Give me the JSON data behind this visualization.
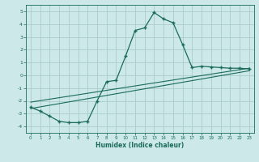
{
  "xlabel": "Humidex (Indice chaleur)",
  "ylabel": "",
  "bg_color": "#cce8e8",
  "grid_color": "#aacccc",
  "line_color": "#1a6b5a",
  "xlim": [
    -0.5,
    23.5
  ],
  "ylim": [
    -4.5,
    5.5
  ],
  "xticks": [
    0,
    1,
    2,
    3,
    4,
    5,
    6,
    7,
    8,
    9,
    10,
    11,
    12,
    13,
    14,
    15,
    16,
    17,
    18,
    19,
    20,
    21,
    22,
    23
  ],
  "yticks": [
    -4,
    -3,
    -2,
    -1,
    0,
    1,
    2,
    3,
    4,
    5
  ],
  "line1_x": [
    0,
    1,
    2,
    3,
    4,
    5,
    6,
    7,
    8,
    9,
    10,
    11,
    12,
    13,
    14,
    15,
    16,
    17,
    18,
    19,
    20,
    21,
    22,
    23
  ],
  "line1_y": [
    -2.5,
    -2.8,
    -3.2,
    -3.6,
    -3.7,
    -3.7,
    -3.6,
    -2.0,
    -0.5,
    -0.4,
    1.5,
    3.5,
    3.7,
    4.9,
    4.4,
    4.1,
    2.4,
    0.6,
    0.7,
    0.65,
    0.6,
    0.55,
    0.55,
    0.5
  ],
  "line2_x": [
    0,
    23
  ],
  "line2_y": [
    -2.6,
    0.35
  ],
  "line3_x": [
    0,
    23
  ],
  "line3_y": [
    -2.1,
    0.55
  ]
}
